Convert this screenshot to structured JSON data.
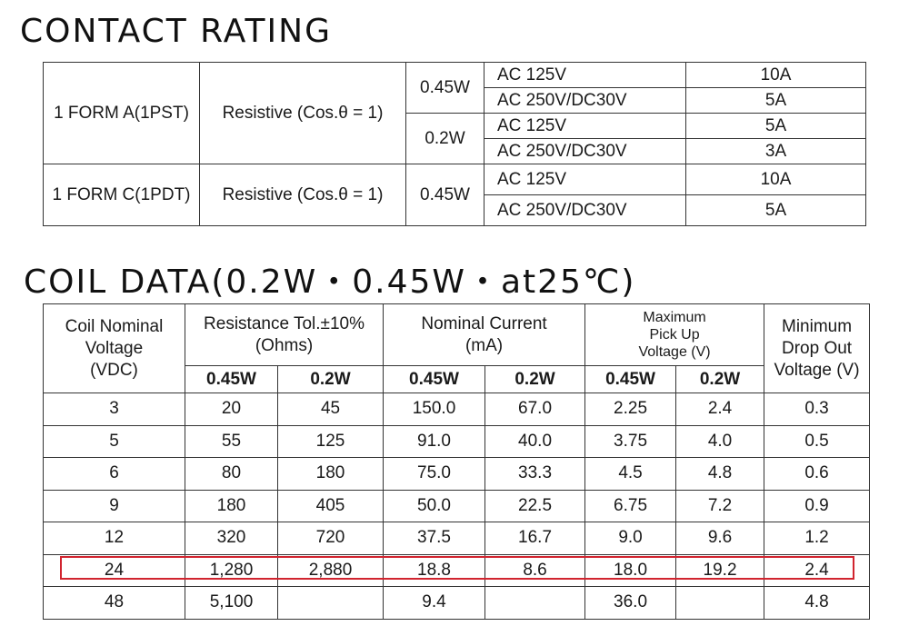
{
  "contact": {
    "heading": "CONTACT RATING",
    "rows": [
      {
        "form": "1 FORM A(1PST)",
        "load": "Resistive (Cos.θ = 1)",
        "groups": [
          {
            "power": "0.45W",
            "items": [
              {
                "voltage": "AC 125V",
                "current": "10A"
              },
              {
                "voltage": "AC 250V/DC30V",
                "current": "5A"
              }
            ]
          },
          {
            "power": "0.2W",
            "items": [
              {
                "voltage": "AC 125V",
                "current": "5A"
              },
              {
                "voltage": "AC 250V/DC30V",
                "current": "3A"
              }
            ]
          }
        ]
      },
      {
        "form": "1 FORM C(1PDT)",
        "load": "Resistive (Cos.θ = 1)",
        "groups": [
          {
            "power": "0.45W",
            "items": [
              {
                "voltage": "AC 125V",
                "current": "10A"
              },
              {
                "voltage": "AC 250V/DC30V",
                "current": "5A"
              }
            ]
          }
        ]
      }
    ]
  },
  "coil": {
    "heading": "COIL DATA(0.2W・0.45W・at25℃)",
    "headers": {
      "nominal_voltage": "Coil Nominal\nVoltage\n(VDC)",
      "resistance": "Resistance Tol.±10%\n(Ohms)",
      "current": "Nominal Current\n(mA)",
      "pickup": "Maximum\nPick Up\nVoltage (V)",
      "dropout": "Minimum\nDrop Out\nVoltage (V)",
      "sub_045": "0.45W",
      "sub_02": "0.2W"
    },
    "rows": [
      {
        "voltage": "3",
        "res_045": "20",
        "res_02": "45",
        "cur_045": "150.0",
        "cur_02": "67.0",
        "pu_045": "2.25",
        "pu_02": "2.4",
        "drop": "0.3"
      },
      {
        "voltage": "5",
        "res_045": "55",
        "res_02": "125",
        "cur_045": "91.0",
        "cur_02": "40.0",
        "pu_045": "3.75",
        "pu_02": "4.0",
        "drop": "0.5"
      },
      {
        "voltage": "6",
        "res_045": "80",
        "res_02": "180",
        "cur_045": "75.0",
        "cur_02": "33.3",
        "pu_045": "4.5",
        "pu_02": "4.8",
        "drop": "0.6"
      },
      {
        "voltage": "9",
        "res_045": "180",
        "res_02": "405",
        "cur_045": "50.0",
        "cur_02": "22.5",
        "pu_045": "6.75",
        "pu_02": "7.2",
        "drop": "0.9"
      },
      {
        "voltage": "12",
        "res_045": "320",
        "res_02": "720",
        "cur_045": "37.5",
        "cur_02": "16.7",
        "pu_045": "9.0",
        "pu_02": "9.6",
        "drop": "1.2"
      },
      {
        "voltage": "24",
        "res_045": "1,280",
        "res_02": "2,880",
        "cur_045": "18.8",
        "cur_02": "8.6",
        "pu_045": "18.0",
        "pu_02": "19.2",
        "drop": "2.4"
      },
      {
        "voltage": "48",
        "res_045": "5,100",
        "res_02": "",
        "cur_045": "9.4",
        "cur_02": "",
        "pu_045": "36.0",
        "pu_02": "",
        "drop": "4.8"
      }
    ],
    "highlight_color": "#d1242f"
  }
}
